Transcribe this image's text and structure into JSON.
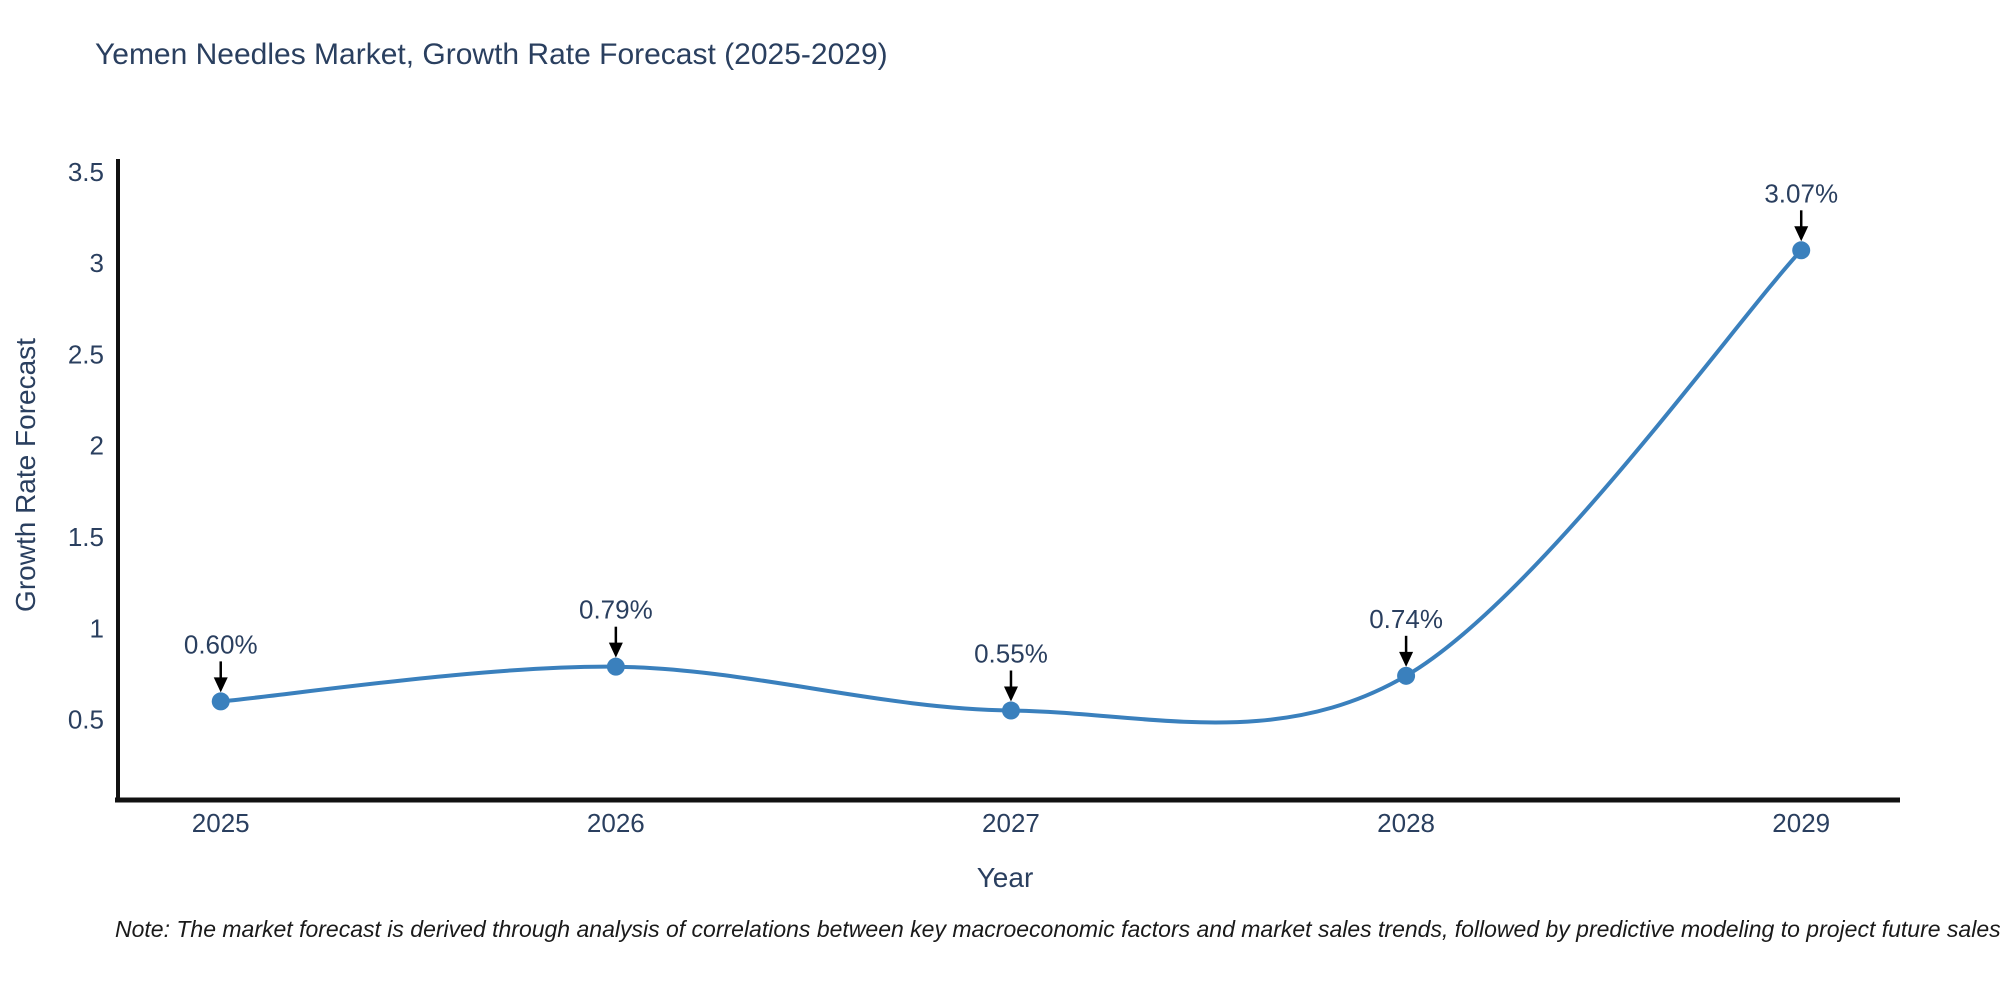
{
  "note": "Note: The market forecast is derived through analysis of correlations between key macroeconomic factors and market sales trends, followed by predictive modeling to project future sales",
  "chart_data": {
    "type": "line",
    "title": "Yemen Needles Market, Growth Rate Forecast (2025-2029)",
    "xlabel": "Year",
    "ylabel": "Growth Rate Forecast",
    "x": [
      2025,
      2026,
      2027,
      2028,
      2029
    ],
    "y": [
      0.6,
      0.79,
      0.55,
      0.74,
      3.07
    ],
    "point_labels": [
      "0.60%",
      "0.79%",
      "0.55%",
      "0.74%",
      "3.07%"
    ],
    "xtick_labels": [
      "2025",
      "2026",
      "2027",
      "2028",
      "2029"
    ],
    "yticks": [
      0.5,
      1,
      1.5,
      2,
      2.5,
      3,
      3.5
    ],
    "ytick_labels": [
      "0.5",
      "1",
      "1.5",
      "2",
      "2.5",
      "3",
      "3.5"
    ],
    "xlim": [
      2024.74,
      2029.25
    ],
    "ylim": [
      0.06,
      3.57
    ],
    "grid": false,
    "legend": "none",
    "line_color": "#3a80bd",
    "axis_color": "#111111",
    "text_color": "#2a3f5f",
    "annotation_arrow_color": "#000000"
  }
}
